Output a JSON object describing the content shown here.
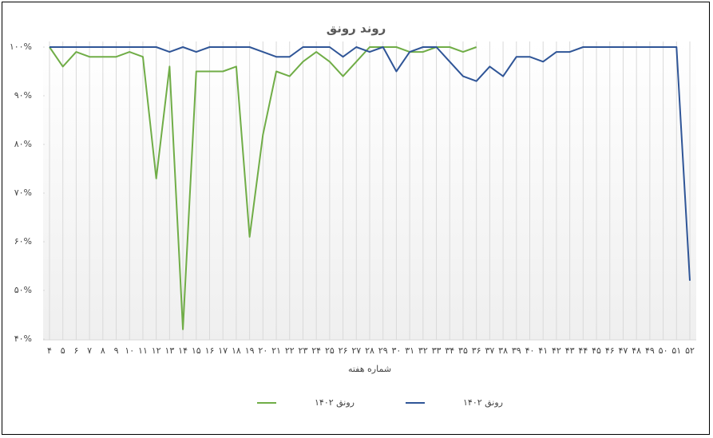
{
  "chart_data": {
    "type": "line",
    "title": "روند رونق",
    "x_label": "شماره هفته",
    "categories": [
      "۴",
      "۵",
      "۶",
      "۷",
      "۸",
      "۹",
      "۱۰",
      "۱۱",
      "۱۲",
      "۱۳",
      "۱۴",
      "۱۵",
      "۱۶",
      "۱۷",
      "۱۸",
      "۱۹",
      "۲۰",
      "۲۱",
      "۲۲",
      "۲۳",
      "۲۴",
      "۲۵",
      "۲۶",
      "۲۷",
      "۲۸",
      "۲۹",
      "۳۰",
      "۳۱",
      "۳۲",
      "۳۳",
      "۳۴",
      "۳۵",
      "۳۶",
      "۳۷",
      "۳۸",
      "۳۹",
      "۴۰",
      "۴۱",
      "۴۲",
      "۴۳",
      "۴۴",
      "۴۵",
      "۴۶",
      "۴۷",
      "۴۸",
      "۴۹",
      "۵۰",
      "۵۱",
      "۵۲"
    ],
    "series": [
      {
        "name": "رونق ۱۴۰۲",
        "color": "#70ad47",
        "values": [
          100,
          96,
          99,
          98,
          98,
          98,
          99,
          98,
          73,
          96,
          42,
          95,
          95,
          95,
          96,
          61,
          82,
          95,
          94,
          97,
          99,
          97,
          94,
          97,
          100,
          100,
          100,
          99,
          99,
          100,
          100,
          99,
          100,
          null,
          null,
          null,
          null,
          null,
          null,
          null,
          null,
          null,
          null,
          null,
          null,
          null,
          null,
          null,
          null
        ]
      },
      {
        "name": "رونق ۱۴۰۲",
        "color": "#2f5597",
        "values": [
          100,
          100,
          100,
          100,
          100,
          100,
          100,
          100,
          100,
          99,
          100,
          99,
          100,
          100,
          100,
          100,
          99,
          98,
          98,
          100,
          100,
          100,
          98,
          100,
          99,
          100,
          95,
          99,
          100,
          100,
          97,
          94,
          93,
          96,
          94,
          98,
          98,
          97,
          99,
          99,
          100,
          100,
          100,
          100,
          100,
          100,
          100,
          100,
          52
        ]
      }
    ],
    "ylim": [
      40,
      100
    ],
    "yticks": [
      {
        "value": 40,
        "label": "۴۰%"
      },
      {
        "value": 50,
        "label": "۵۰%"
      },
      {
        "value": 60,
        "label": "۶۰%"
      },
      {
        "value": 70,
        "label": "۷۰%"
      },
      {
        "value": 80,
        "label": "۸۰%"
      },
      {
        "value": 90,
        "label": "۹۰%"
      },
      {
        "value": 100,
        "label": "۱۰۰%"
      }
    ],
    "legend": "bottom"
  }
}
